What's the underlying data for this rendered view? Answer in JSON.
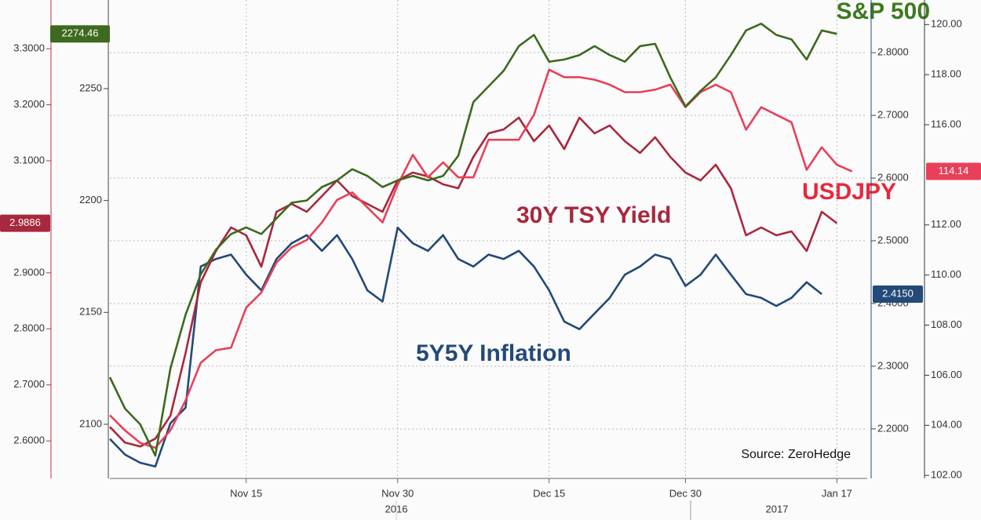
{
  "chart_data": {
    "type": "line",
    "categories": [
      null,
      null,
      null,
      null,
      null,
      null,
      null,
      null,
      null,
      "Nov 15",
      null,
      null,
      null,
      null,
      null,
      null,
      null,
      null,
      null,
      "Nov 30",
      null,
      null,
      null,
      null,
      null,
      null,
      null,
      null,
      null,
      "Dec 15",
      null,
      null,
      null,
      null,
      null,
      null,
      null,
      null,
      "Dec 30",
      null,
      null,
      null,
      null,
      null,
      null,
      null,
      null,
      null,
      "Jan 17",
      null,
      null
    ],
    "years": [
      "2016",
      "2017"
    ],
    "source": "Source: ZeroHedge",
    "grid": true,
    "axes": [
      {
        "color": "#c0304a",
        "lim": [
          2.533,
          3.387
        ],
        "ticks": [
          {
            "value": 2.6,
            "label": "2.6000"
          },
          {
            "value": 2.7,
            "label": "2.7000"
          },
          {
            "value": 2.8,
            "label": "2.8000"
          },
          {
            "value": 2.9,
            "label": "2.9000"
          },
          {
            "value": 3.1,
            "label": "3.1000"
          },
          {
            "value": 3.2,
            "label": "3.2000"
          },
          {
            "value": 3.3,
            "label": "3.3000"
          }
        ]
      },
      {
        "color": "#444444",
        "lim": [
          2075.8,
          2289.6
        ],
        "ticks": [
          2100,
          2150,
          2200,
          2250
        ]
      },
      {
        "color": "#2a4a72",
        "lim": [
          2.121,
          2.884
        ],
        "ticks": [
          {
            "value": 2.2,
            "label": "2.2000"
          },
          {
            "value": 2.3,
            "label": "2.3000"
          },
          {
            "value": 2.4,
            "label": "2.4000"
          },
          {
            "value": 2.5,
            "label": "2.5000"
          },
          {
            "value": 2.6,
            "label": "2.6000"
          },
          {
            "value": 2.7,
            "label": "2.7000"
          },
          {
            "value": 2.8,
            "label": "2.8000"
          }
        ]
      },
      {
        "color": "#333333",
        "lim": [
          101.88,
          120.98
        ],
        "ticks": [
          {
            "value": 102,
            "label": "102.00"
          },
          {
            "value": 104,
            "label": "104.00"
          },
          {
            "value": 106,
            "label": "106.00"
          },
          {
            "value": 108,
            "label": "108.00"
          },
          {
            "value": 110,
            "label": "110.00"
          },
          {
            "value": 112,
            "label": "112.00"
          },
          {
            "value": 116,
            "label": "116.00"
          },
          {
            "value": 118,
            "label": "118.00"
          },
          {
            "value": 120,
            "label": "120.00"
          }
        ]
      }
    ],
    "series": [
      {
        "name": "S&P 500",
        "color": "#3d6a1e",
        "axis": 1,
        "last_label": "2274.46",
        "values": [
          2121,
          2107,
          2100,
          2086,
          2125,
          2149,
          2167,
          2178,
          2185,
          2188,
          2185,
          2192,
          2199,
          2200,
          2206,
          2209,
          2214,
          2211,
          2206,
          2209,
          2211,
          2209,
          2211,
          2220,
          2244,
          2251,
          2258,
          2269,
          2274,
          2262,
          2263,
          2265,
          2269,
          2265,
          2262,
          2269,
          2270,
          2255,
          2242,
          2249,
          2255,
          2265,
          2276,
          2279,
          2274,
          2272,
          2263,
          2276,
          2274.46,
          null,
          null
        ]
      },
      {
        "name": "USDJPY",
        "color": "#e8405a",
        "axis": 3,
        "last_label": "114.14",
        "values": [
          104.4,
          103.8,
          103.3,
          103.1,
          103.8,
          105.0,
          106.5,
          107.0,
          107.1,
          108.7,
          109.3,
          110.5,
          111.1,
          111.4,
          112.1,
          113.0,
          113.3,
          112.7,
          112.1,
          113.6,
          114.8,
          113.9,
          114.5,
          113.9,
          113.9,
          115.4,
          115.4,
          115.4,
          116.4,
          118.2,
          117.9,
          117.9,
          117.8,
          117.6,
          117.3,
          117.3,
          117.4,
          117.6,
          116.7,
          117.3,
          117.6,
          117.3,
          115.8,
          116.7,
          116.4,
          116.1,
          114.2,
          115.1,
          114.4,
          114.14,
          null
        ]
      },
      {
        "name": "30Y TSY Yield",
        "color": "#a8283e",
        "axis": 0,
        "last_label": "2.9886",
        "values": [
          2.625,
          2.597,
          2.59,
          2.604,
          2.645,
          2.757,
          2.883,
          2.939,
          2.981,
          2.967,
          2.911,
          3.009,
          3.023,
          3.009,
          3.037,
          3.065,
          3.037,
          3.023,
          3.009,
          3.065,
          3.079,
          3.072,
          3.058,
          3.051,
          3.107,
          3.149,
          3.156,
          3.177,
          3.135,
          3.163,
          3.121,
          3.177,
          3.149,
          3.163,
          3.135,
          3.114,
          3.142,
          3.107,
          3.079,
          3.065,
          3.093,
          3.051,
          2.967,
          2.981,
          2.967,
          2.974,
          2.939,
          3.009,
          2.9886,
          null,
          null
        ]
      },
      {
        "name": "5Y5Y Inflation",
        "color": "#234a78",
        "axis": 2,
        "last_label": "2.4150",
        "values": [
          2.184,
          2.159,
          2.146,
          2.14,
          2.209,
          2.234,
          2.459,
          2.471,
          2.478,
          2.446,
          2.421,
          2.471,
          2.496,
          2.509,
          2.484,
          2.509,
          2.471,
          2.421,
          2.403,
          2.521,
          2.496,
          2.484,
          2.509,
          2.471,
          2.459,
          2.478,
          2.471,
          2.484,
          2.459,
          2.421,
          2.371,
          2.359,
          2.384,
          2.409,
          2.446,
          2.459,
          2.478,
          2.471,
          2.428,
          2.446,
          2.478,
          2.446,
          2.415,
          2.409,
          2.396,
          2.409,
          2.434,
          2.415,
          null,
          null,
          null
        ]
      }
    ]
  }
}
